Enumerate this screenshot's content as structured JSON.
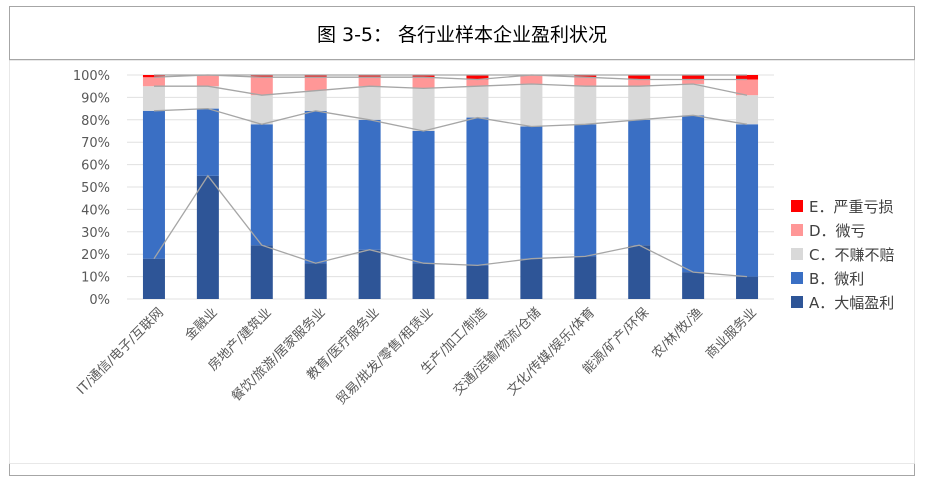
{
  "figure_title": "图 3-5：  各行业样本企业盈利状况",
  "chart_data": {
    "type": "bar",
    "stacked": true,
    "percent": true,
    "title": "",
    "xlabel": "",
    "ylabel": "",
    "ylim": [
      0,
      100
    ],
    "yticks": [
      "0%",
      "10%",
      "20%",
      "30%",
      "40%",
      "50%",
      "60%",
      "70%",
      "80%",
      "90%",
      "100%"
    ],
    "legend_position": "right",
    "series_lines": true,
    "categories": [
      "IT/通信/电子/互联网",
      "金融业",
      "房地产/建筑业",
      "餐饮/旅游/居家服务业",
      "教育/医疗服务业",
      "贸易/批发/零售/租赁业",
      "生产/加工/制造",
      "交通/运输/物流/仓储",
      "文化/传媒/娱乐/体育",
      "能源/矿产/环保",
      "农/林/牧/渔",
      "商业服务业"
    ],
    "series": [
      {
        "name": "A．大幅盈利",
        "color": "#2e5597",
        "values": [
          18,
          55,
          24,
          16,
          22,
          16,
          15,
          18,
          19,
          24,
          12,
          10
        ]
      },
      {
        "name": "B．微利",
        "color": "#3a6fc4",
        "values": [
          66,
          30,
          54,
          68,
          58,
          59,
          66,
          59,
          59,
          56,
          70,
          68
        ]
      },
      {
        "name": "C．不赚不赔",
        "color": "#d9d9d9",
        "values": [
          11,
          10,
          13,
          9,
          15,
          19,
          14,
          19,
          17,
          15,
          14,
          13
        ]
      },
      {
        "name": "D．微亏",
        "color": "#ff9797",
        "values": [
          4,
          5,
          8,
          6,
          4,
          5,
          3,
          4,
          4,
          3,
          2,
          7
        ]
      },
      {
        "name": "E．严重亏损",
        "color": "#ff0000",
        "values": [
          1,
          0,
          1,
          1,
          1,
          1,
          2,
          0,
          1,
          2,
          2,
          2
        ]
      }
    ]
  }
}
